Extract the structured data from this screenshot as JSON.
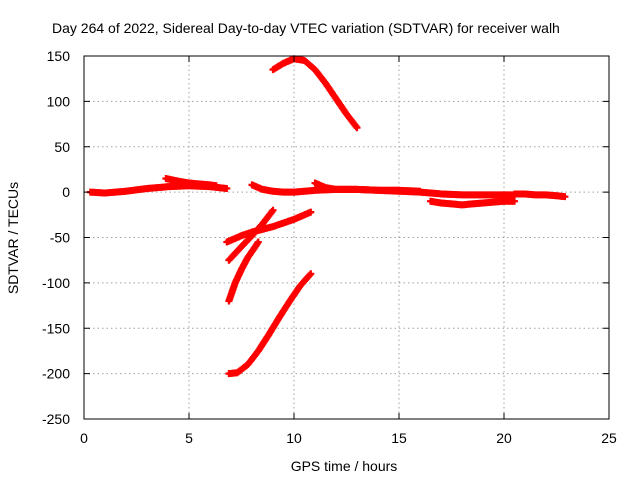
{
  "chart_data": {
    "type": "scatter",
    "title": "Day 264 of 2022, Sidereal Day-to-day VTEC variation (SDTVAR) for receiver walh",
    "xlabel": "GPS time / hours",
    "ylabel": "SDTVAR / TECUs",
    "xlim": [
      0,
      25
    ],
    "ylim": [
      -250,
      150
    ],
    "xticks": [
      0,
      5,
      10,
      15,
      20,
      25
    ],
    "yticks": [
      -250,
      -200,
      -150,
      -100,
      -50,
      0,
      50,
      100,
      150
    ],
    "xtick_labels": [
      "0",
      "5",
      "10",
      "15",
      "20",
      "25"
    ],
    "ytick_labels": [
      "-250",
      "-200",
      "-150",
      "-100",
      "-50",
      "0",
      "50",
      "100",
      "150"
    ],
    "grid": true,
    "marker": "plus",
    "series_color": "#ff0000",
    "series": [
      {
        "name": "track-1",
        "x": [
          0.3,
          1.0,
          2.0,
          3.0,
          4.0,
          5.0,
          6.0,
          6.8
        ],
        "y": [
          0,
          -1,
          1,
          4,
          6,
          7,
          6,
          4
        ]
      },
      {
        "name": "track-2",
        "x": [
          3.9,
          4.5,
          5.0,
          5.5,
          6.0,
          6.3
        ],
        "y": [
          15,
          12,
          10,
          9,
          8,
          7
        ]
      },
      {
        "name": "track-3",
        "x": [
          8.0,
          8.5,
          9.0,
          9.5,
          10.0,
          10.5,
          11.0,
          12.0,
          13.0,
          14.0,
          15.0,
          16.0
        ],
        "y": [
          8,
          3,
          1,
          0,
          0,
          1,
          2,
          3,
          3,
          2,
          2,
          1
        ]
      },
      {
        "name": "track-4",
        "x": [
          11.0,
          11.5,
          12.0,
          13.0,
          14.0,
          15.0,
          16.0,
          17.0,
          18.0,
          19.0,
          20.0,
          20.5
        ],
        "y": [
          10,
          5,
          3,
          3,
          2,
          1,
          0,
          -2,
          -3,
          -3,
          -3,
          -3
        ]
      },
      {
        "name": "track-5",
        "x": [
          16.5,
          17.0,
          17.5,
          18.0,
          18.5,
          19.0,
          20.0,
          20.5
        ],
        "y": [
          -10,
          -12,
          -13,
          -14,
          -13,
          -12,
          -10,
          -10
        ]
      },
      {
        "name": "track-6",
        "x": [
          20.5,
          21.0,
          21.5,
          22.0,
          22.5,
          22.9
        ],
        "y": [
          -2,
          -2,
          -3,
          -3,
          -4,
          -5
        ]
      },
      {
        "name": "track-7",
        "x": [
          9.0,
          9.5,
          10.0,
          10.5,
          11.0,
          11.5,
          12.0,
          12.5,
          13.0
        ],
        "y": [
          135,
          142,
          147,
          145,
          135,
          120,
          103,
          86,
          71
        ]
      },
      {
        "name": "track-8",
        "x": [
          6.8,
          7.5,
          8.0,
          9.0,
          10.0,
          10.8
        ],
        "y": [
          -55,
          -48,
          -44,
          -38,
          -30,
          -22
        ]
      },
      {
        "name": "track-9",
        "x": [
          6.9,
          7.5,
          8.0,
          8.5,
          9.0
        ],
        "y": [
          -75,
          -60,
          -48,
          -35,
          -20
        ]
      },
      {
        "name": "track-10",
        "x": [
          6.9,
          7.2,
          7.5,
          7.8,
          8.1,
          8.3
        ],
        "y": [
          -120,
          -100,
          -85,
          -72,
          -62,
          -55
        ]
      },
      {
        "name": "track-11",
        "x": [
          6.9,
          7.3,
          7.8,
          8.3,
          8.8,
          9.3,
          9.8,
          10.3,
          10.8
        ],
        "y": [
          -200,
          -199,
          -190,
          -175,
          -157,
          -138,
          -120,
          -103,
          -90
        ]
      }
    ]
  }
}
